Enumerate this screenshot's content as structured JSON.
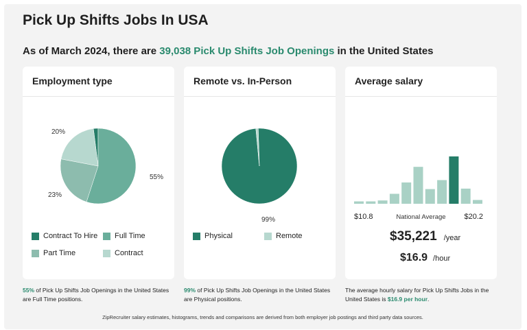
{
  "title": "Pick Up Shifts Jobs In USA",
  "subtitle": {
    "prefix": "As of March 2024, there are ",
    "highlight": "39,038 Pick Up Shifts Job Openings",
    "suffix": " in the United States"
  },
  "colors": {
    "accent": "#2a8a6e",
    "dark": "#257d68",
    "mid": "#6aae9b",
    "part": "#8dbcae",
    "light": "#b7d8cf"
  },
  "chart_data": [
    {
      "type": "pie",
      "title": "Employment type",
      "categories": [
        "Contract To Hire",
        "Full Time",
        "Part Time",
        "Contract"
      ],
      "values": [
        2,
        55,
        23,
        20
      ],
      "data_labels": [
        "",
        "55%",
        "23%",
        "20%"
      ],
      "legend_placement": "bottom"
    },
    {
      "type": "pie",
      "title": "Remote vs. In-Person",
      "categories": [
        "Physical",
        "Remote"
      ],
      "values": [
        99,
        1
      ],
      "data_labels": [
        "99%",
        ""
      ],
      "legend_placement": "bottom"
    },
    {
      "type": "bar",
      "title": "Average salary",
      "x_min_label": "$10.8",
      "x_max_label": "$20.2",
      "center_label": "National Average",
      "values": [
        5,
        5,
        7,
        21,
        45,
        78,
        31,
        50,
        100,
        32,
        8
      ],
      "highlight_index": 8
    }
  ],
  "salary": {
    "yearly": "$35,221",
    "yearly_unit": "/year",
    "hourly": "$16.9",
    "hourly_unit": "/hour"
  },
  "notes": {
    "employment": {
      "b": "55%",
      "t": " of Pick Up Shifts Job Openings in the United States are Full Time positions."
    },
    "remote": {
      "b": "99%",
      "t": " of Pick Up Shifts Job Openings in the United States are Physical positions."
    },
    "salary": {
      "t": "The average hourly salary for Pick Up Shifts Jobs in the United States is ",
      "b": "$16.9 per hour",
      "e": "."
    }
  },
  "footer": "ZipRecruiter salary estimates, histograms, trends and comparisons are derived from both employer job postings and third party data sources."
}
